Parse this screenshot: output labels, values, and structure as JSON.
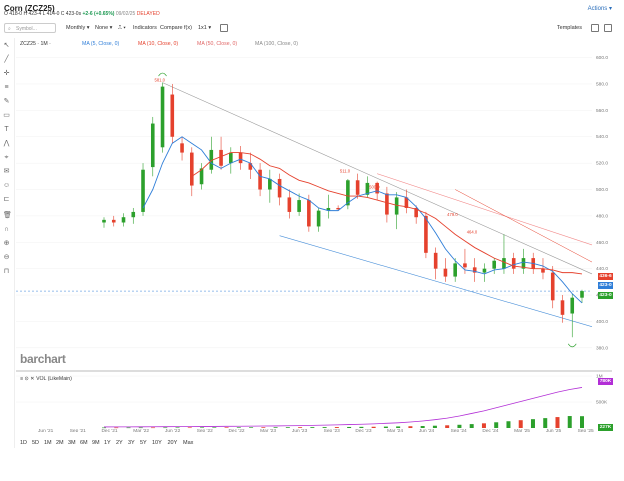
{
  "header": {
    "title": "Corn (ZCZ25)",
    "quote_ohlc": "O 418-0 H 423-4 L 414-0 C 423-0s",
    "quote_change": "+2-6 (+0.65%)",
    "quote_time": "09/02/25",
    "quote_status": "DELAYED",
    "actions_label": "Actions"
  },
  "toolbar": {
    "symbol_placeholder": "Symbol...",
    "interval_label": "Monthly",
    "none_label": "None",
    "indicators_label": "Indicators",
    "compare_label": "Compare",
    "fx_label": "f(x)",
    "layout_label": "1x1",
    "templates_label": "Templates"
  },
  "legend": {
    "symbol": "ZCZ25 · 1M ·",
    "ma5": "MA (5, Close, 0)",
    "ma10": "MA (10, Close, 0)",
    "ma50": "MA (50, Close, 0)",
    "ma100": "MA (100, Close, 0)",
    "vol": "VOL (LikeMain)"
  },
  "brand": "barchart",
  "colors": {
    "up": "#2ca02c",
    "down": "#e5412d",
    "ma5": "#2f7ed8",
    "ma10": "#e5412d",
    "vol_line": "#b22ed6"
  },
  "price_axis": {
    "ticks": [
      "600.0",
      "580.0",
      "560.0",
      "540.0",
      "520.0",
      "500.0",
      "480.0",
      "460.0",
      "440.0",
      "420.0",
      "400.0",
      "380.0"
    ],
    "badge_red": "436-6",
    "badge_blue": "423-0",
    "badge_green": "423-0"
  },
  "volume_axis": {
    "ticks": [
      "1M",
      "500K"
    ],
    "badge_purple": "780K",
    "badge_green": "227K"
  },
  "time_axis": [
    "Jun '21",
    "Sep '21",
    "Dec '21",
    "Mar '22",
    "Jun '22",
    "Sep '22",
    "Dec '22",
    "Mar '23",
    "Jun '23",
    "Sep '23",
    "Dec '23",
    "Mar '24",
    "Jun '24",
    "Sep '24",
    "Dec '24",
    "Mar '25",
    "Jun '25",
    "Sep '25"
  ],
  "annotations": [
    "581.0",
    "511.0",
    "500.0",
    "479.0",
    "464.0"
  ],
  "timeframes": [
    "1D",
    "5D",
    "1M",
    "2M",
    "3M",
    "6M",
    "9M",
    "1Y",
    "2Y",
    "3Y",
    "5Y",
    "10Y",
    "20Y",
    "Max"
  ],
  "chart_data": {
    "type": "candlestick",
    "interval": "Monthly",
    "ylim": [
      370,
      605
    ],
    "candles": [
      {
        "o": 475,
        "h": 479,
        "l": 471,
        "c": 477
      },
      {
        "o": 477,
        "h": 480,
        "l": 472,
        "c": 475
      },
      {
        "o": 475,
        "h": 482,
        "l": 472,
        "c": 479
      },
      {
        "o": 479,
        "h": 486,
        "l": 474,
        "c": 483
      },
      {
        "o": 483,
        "h": 520,
        "l": 480,
        "c": 515
      },
      {
        "o": 517,
        "h": 555,
        "l": 510,
        "c": 550
      },
      {
        "o": 532,
        "h": 581,
        "l": 528,
        "c": 578
      },
      {
        "o": 572,
        "h": 580,
        "l": 535,
        "c": 540
      },
      {
        "o": 535,
        "h": 540,
        "l": 522,
        "c": 528
      },
      {
        "o": 528,
        "h": 532,
        "l": 495,
        "c": 503
      },
      {
        "o": 504,
        "h": 520,
        "l": 500,
        "c": 516
      },
      {
        "o": 515,
        "h": 540,
        "l": 512,
        "c": 530
      },
      {
        "o": 530,
        "h": 540,
        "l": 515,
        "c": 518
      },
      {
        "o": 520,
        "h": 532,
        "l": 512,
        "c": 528
      },
      {
        "o": 528,
        "h": 533,
        "l": 515,
        "c": 520
      },
      {
        "o": 520,
        "h": 528,
        "l": 508,
        "c": 515
      },
      {
        "o": 515,
        "h": 520,
        "l": 495,
        "c": 500
      },
      {
        "o": 500,
        "h": 515,
        "l": 490,
        "c": 508
      },
      {
        "o": 508,
        "h": 512,
        "l": 488,
        "c": 494
      },
      {
        "o": 494,
        "h": 500,
        "l": 478,
        "c": 483
      },
      {
        "o": 483,
        "h": 497,
        "l": 480,
        "c": 492
      },
      {
        "o": 492,
        "h": 496,
        "l": 468,
        "c": 472
      },
      {
        "o": 472,
        "h": 486,
        "l": 468,
        "c": 484
      },
      {
        "o": 484,
        "h": 496,
        "l": 478,
        "c": 486
      },
      {
        "o": 486,
        "h": 488,
        "l": 484,
        "c": 485
      },
      {
        "o": 488,
        "h": 508,
        "l": 485,
        "c": 507
      },
      {
        "o": 507,
        "h": 512,
        "l": 493,
        "c": 496
      },
      {
        "o": 496,
        "h": 510,
        "l": 494,
        "c": 505
      },
      {
        "o": 505,
        "h": 506,
        "l": 492,
        "c": 497
      },
      {
        "o": 497,
        "h": 502,
        "l": 475,
        "c": 481
      },
      {
        "o": 481,
        "h": 498,
        "l": 470,
        "c": 494
      },
      {
        "o": 494,
        "h": 500,
        "l": 482,
        "c": 486
      },
      {
        "o": 486,
        "h": 488,
        "l": 474,
        "c": 479
      },
      {
        "o": 480,
        "h": 483,
        "l": 448,
        "c": 452
      },
      {
        "o": 452,
        "h": 456,
        "l": 432,
        "c": 440
      },
      {
        "o": 440,
        "h": 448,
        "l": 430,
        "c": 434
      },
      {
        "o": 434,
        "h": 448,
        "l": 430,
        "c": 444
      },
      {
        "o": 444,
        "h": 455,
        "l": 436,
        "c": 441
      },
      {
        "o": 441,
        "h": 448,
        "l": 430,
        "c": 437
      },
      {
        "o": 437,
        "h": 444,
        "l": 430,
        "c": 440
      },
      {
        "o": 440,
        "h": 448,
        "l": 436,
        "c": 446
      },
      {
        "o": 440,
        "h": 466,
        "l": 436,
        "c": 448
      },
      {
        "o": 448,
        "h": 452,
        "l": 436,
        "c": 440
      },
      {
        "o": 440,
        "h": 455,
        "l": 436,
        "c": 448
      },
      {
        "o": 448,
        "h": 452,
        "l": 436,
        "c": 440
      },
      {
        "o": 440,
        "h": 448,
        "l": 432,
        "c": 437
      },
      {
        "o": 437,
        "h": 442,
        "l": 410,
        "c": 416
      },
      {
        "o": 416,
        "h": 420,
        "l": 399,
        "c": 405
      },
      {
        "o": 406,
        "h": 421,
        "l": 388,
        "c": 418
      },
      {
        "o": 418,
        "h": 424,
        "l": 414,
        "c": 423
      }
    ],
    "ma5": [
      null,
      null,
      null,
      null,
      486,
      500,
      520,
      535,
      540,
      535,
      530,
      520,
      516,
      520,
      523,
      520,
      510,
      508,
      503,
      499,
      495,
      492,
      486,
      484,
      484,
      490,
      495,
      497,
      499,
      496,
      496,
      494,
      487,
      478,
      467,
      455,
      446,
      439,
      438,
      436,
      439,
      440,
      443,
      445,
      444,
      442,
      438,
      430,
      421,
      414
    ],
    "ma10": [
      null,
      null,
      null,
      null,
      null,
      null,
      null,
      null,
      null,
      510,
      515,
      522,
      525,
      528,
      528,
      527,
      523,
      518,
      516,
      511,
      507,
      505,
      502,
      499,
      497,
      495,
      495,
      494,
      492,
      490,
      488,
      487,
      485,
      482,
      478,
      472,
      466,
      461,
      456,
      452,
      448,
      445,
      442,
      441,
      440,
      440,
      439,
      437,
      437,
      436
    ],
    "volume": [
      9000,
      9000,
      9500,
      9800,
      10000,
      10500,
      11000,
      11200,
      11400,
      11700,
      12000,
      12500,
      13000,
      13400,
      14000,
      14500,
      15000,
      16000,
      17000,
      18000,
      20000,
      22000,
      24000,
      27000,
      30000,
      34000,
      38000,
      44000,
      52000,
      62000,
      75000,
      90000,
      110000,
      130000,
      150000,
      170000,
      190000,
      210000,
      230000,
      227000
    ],
    "volume_line": [
      20000,
      21000,
      22000,
      23000,
      24000,
      25000,
      26000,
      27000,
      28000,
      30000,
      32000,
      34000,
      36000,
      38000,
      40000,
      43000,
      46000,
      50000,
      55000,
      60000,
      66000,
      72000,
      80000,
      90000,
      100000,
      115000,
      135000,
      160000,
      190000,
      230000,
      280000,
      330000,
      390000,
      450000,
      510000,
      570000,
      630000,
      690000,
      740000,
      780000
    ]
  }
}
